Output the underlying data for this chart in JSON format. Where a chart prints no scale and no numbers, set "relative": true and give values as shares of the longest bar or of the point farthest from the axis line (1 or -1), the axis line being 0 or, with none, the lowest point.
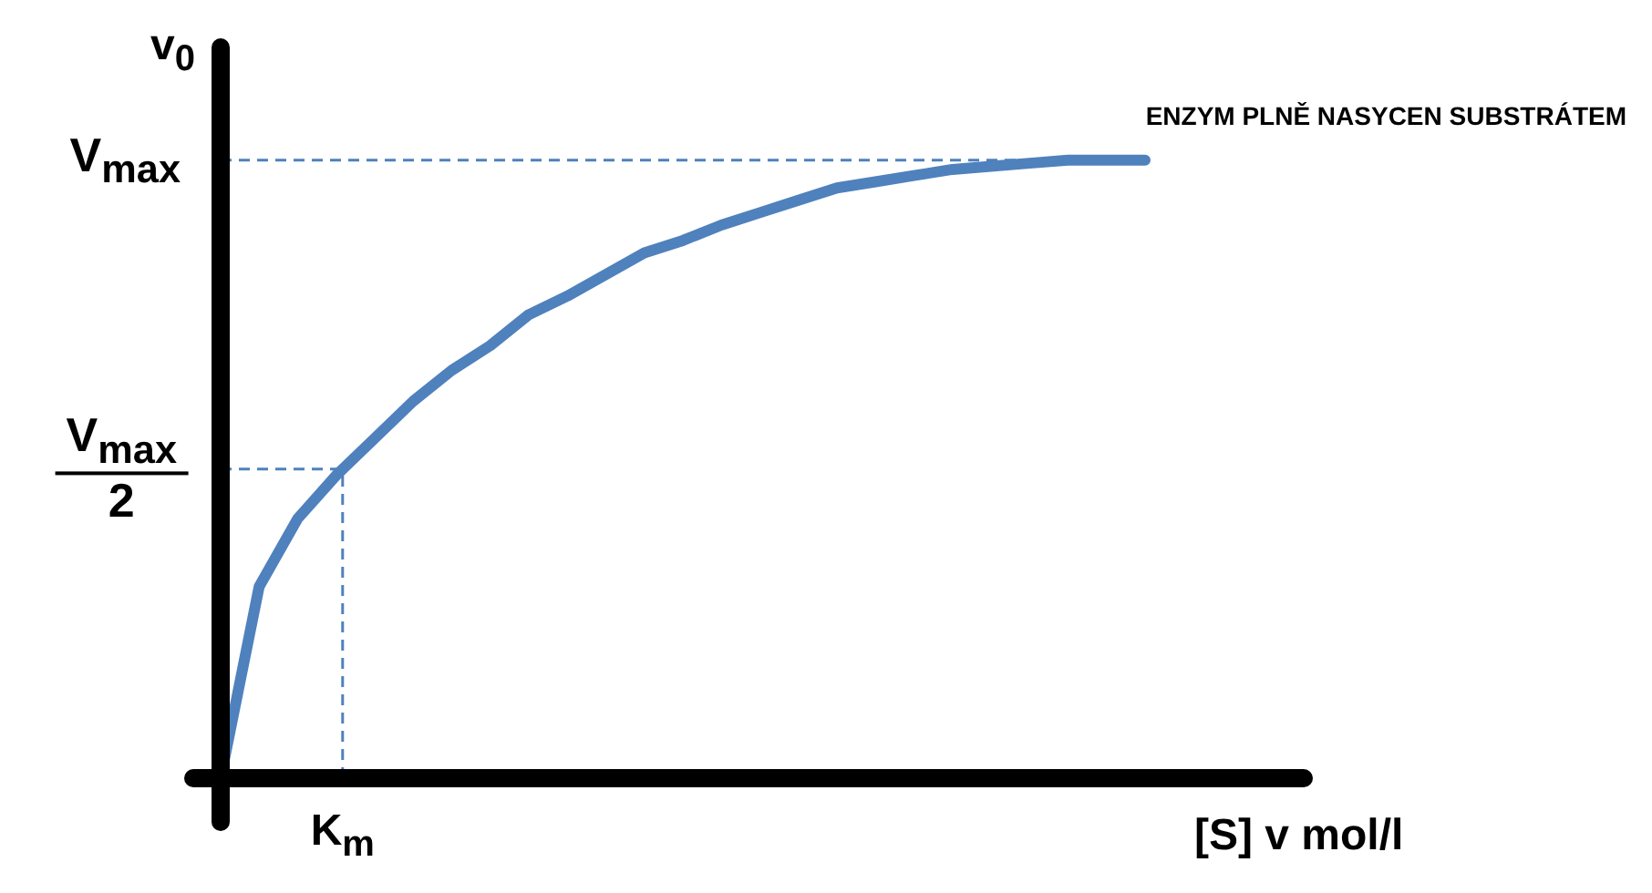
{
  "chart_data": {
    "type": "line",
    "relative": true,
    "marker": "none",
    "line_style": "solid",
    "ylabel": "v$_{0}$",
    "xlabel": "[S] v mol/l",
    "categories": [
      null,
      null,
      null,
      null,
      null,
      null,
      null,
      null,
      null,
      null,
      null,
      null,
      null,
      null,
      null,
      null,
      null,
      null,
      null,
      null,
      null,
      null,
      null,
      null,
      null
    ],
    "series": [
      {
        "color": "#4f81bd",
        "values": [
          0,
          0.31,
          0.42,
          0.49,
          0.55,
          0.61,
          0.66,
          0.7,
          0.75,
          0.78,
          0.815,
          0.85,
          0.87,
          0.895,
          0.915,
          0.935,
          0.955,
          0.965,
          0.975,
          0.985,
          0.99,
          0.995,
          1,
          1,
          1
        ]
      }
    ],
    "ref_lines": [
      {
        "axis": "y",
        "value": 1,
        "label": "V$_{max}$",
        "color": "#4f81bd",
        "line_style": "dashed"
      },
      {
        "axis": "y",
        "value": 0.5,
        "label": "V$_{max}$\n2",
        "color": "#4f81bd",
        "line_style": "dashed"
      }
    ],
    "annotations": [
      "ENZYM PLNĚ NASYCEN SUBSTRÁTEM",
      {
        "text": "K$_{m}$",
        "y": 0.5
      }
    ]
  }
}
